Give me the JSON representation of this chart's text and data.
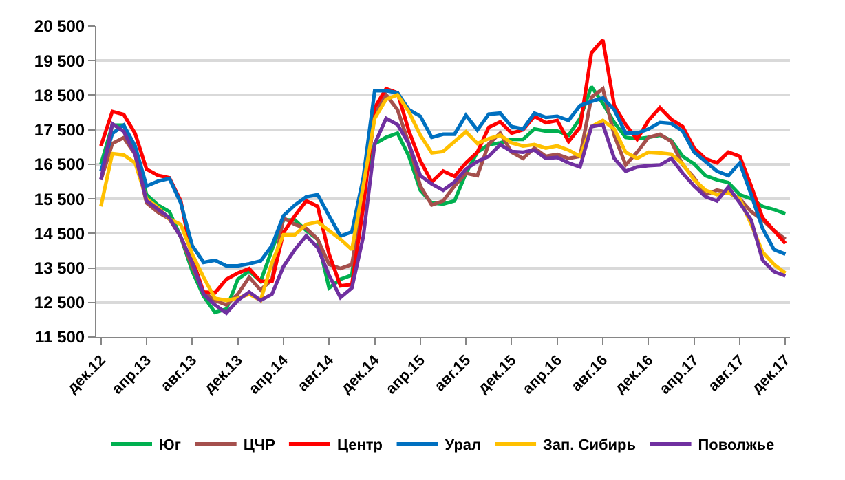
{
  "chart_data": {
    "type": "line",
    "categories": [
      "дек.12",
      null,
      null,
      null,
      "апр.13",
      null,
      null,
      null,
      "авг.13",
      null,
      null,
      null,
      "дек.13",
      null,
      null,
      null,
      "апр.14",
      null,
      null,
      null,
      "авг.14",
      null,
      null,
      null,
      "дек.14",
      null,
      null,
      null,
      "апр.15",
      null,
      null,
      null,
      "авг.15",
      null,
      null,
      null,
      "дек.15",
      null,
      null,
      null,
      "апр.16",
      null,
      null,
      null,
      "авг.16",
      null,
      null,
      null,
      "дек.16",
      null,
      null,
      null,
      "апр.17",
      null,
      null,
      null,
      "авг.17",
      null,
      null,
      null,
      "дек.17"
    ],
    "ylim": [
      11500,
      20500
    ],
    "yticks": [
      {
        "value": 11500,
        "label": "11 500"
      },
      {
        "value": 12500,
        "label": "12 500"
      },
      {
        "value": 13500,
        "label": "13 500"
      },
      {
        "value": 14500,
        "label": "14 500"
      },
      {
        "value": 15500,
        "label": "15 500"
      },
      {
        "value": 16500,
        "label": "16 500"
      },
      {
        "value": 17500,
        "label": "17 500"
      },
      {
        "value": 18500,
        "label": "18 500"
      },
      {
        "value": 19500,
        "label": "19 500"
      },
      {
        "value": 20500,
        "label": "20 500"
      }
    ],
    "grid": "y",
    "legend": "bottom",
    "marker": "none",
    "line_style": "solid",
    "series": [
      {
        "name": "Юг",
        "color": "#00b050",
        "values": [
          16500,
          17630,
          17630,
          16900,
          15620,
          15320,
          15130,
          14400,
          13410,
          12680,
          12210,
          12310,
          13170,
          13410,
          13110,
          14030,
          14890,
          14890,
          14580,
          14330,
          12920,
          13170,
          13290,
          15870,
          17090,
          17280,
          17400,
          16730,
          15750,
          15380,
          15350,
          15440,
          16240,
          16850,
          17070,
          17120,
          17220,
          17220,
          17520,
          17460,
          17460,
          17340,
          17830,
          18750,
          18260,
          17710,
          17280,
          17240,
          17280,
          17340,
          17190,
          16730,
          16510,
          16170,
          16050,
          15970,
          15620,
          15500,
          15280,
          15190,
          15070
        ]
      },
      {
        "name": "ЦЧР",
        "color": "#a5504d",
        "values": [
          16050,
          17100,
          17270,
          16790,
          15380,
          15110,
          14920,
          14400,
          13540,
          12800,
          12560,
          12430,
          12740,
          13230,
          12860,
          13170,
          14950,
          14760,
          14640,
          14330,
          13600,
          13480,
          13600,
          15500,
          17950,
          18510,
          18080,
          17090,
          15870,
          15320,
          15440,
          15870,
          16240,
          16170,
          17090,
          17400,
          16850,
          16670,
          16970,
          16730,
          16790,
          16670,
          16730,
          18440,
          18690,
          17340,
          16480,
          16850,
          17280,
          17370,
          17160,
          16480,
          16110,
          15620,
          15750,
          15680,
          15500,
          15130,
          14890,
          14580,
          14330
        ]
      },
      {
        "name": "Центр",
        "color": "#ff0000",
        "values": [
          17030,
          18030,
          17940,
          17390,
          16360,
          16180,
          16110,
          15440,
          13780,
          12800,
          12780,
          13170,
          13350,
          13480,
          13110,
          13110,
          14520,
          15010,
          15440,
          15280,
          13900,
          12980,
          13020,
          15250,
          18140,
          18690,
          18570,
          17460,
          16600,
          15990,
          16300,
          16150,
          16540,
          16850,
          17570,
          17730,
          17400,
          17500,
          17890,
          17700,
          17770,
          17160,
          17570,
          19730,
          20100,
          18200,
          17650,
          17220,
          17770,
          18140,
          17800,
          17590,
          16970,
          16660,
          16540,
          16850,
          16730,
          15870,
          14950,
          14580,
          14210
        ]
      },
      {
        "name": "Урал",
        "color": "#0070c0",
        "values": [
          16300,
          17390,
          17630,
          17030,
          15870,
          16010,
          16090,
          15380,
          14150,
          13660,
          13720,
          13560,
          13560,
          13620,
          13700,
          14150,
          15010,
          15320,
          15560,
          15620,
          15010,
          14420,
          14540,
          16110,
          18630,
          18630,
          18570,
          18080,
          17890,
          17280,
          17370,
          17370,
          17920,
          17490,
          17950,
          17980,
          17590,
          17520,
          17980,
          17860,
          17890,
          17770,
          18200,
          18320,
          18420,
          18080,
          17400,
          17400,
          17520,
          17710,
          17680,
          17460,
          16850,
          16580,
          16300,
          16170,
          16540,
          15620,
          14640,
          14030,
          13900
        ]
      },
      {
        "name": "Зап. Сибирь",
        "color": "#ffc000",
        "values": [
          15280,
          16810,
          16770,
          16540,
          15500,
          15250,
          14920,
          14760,
          13900,
          13230,
          12620,
          12560,
          12620,
          12740,
          12560,
          13660,
          14460,
          14460,
          14760,
          14830,
          14580,
          14330,
          14030,
          15870,
          17830,
          18380,
          18510,
          18020,
          17340,
          16830,
          16870,
          17160,
          17440,
          17100,
          17240,
          17340,
          17120,
          17030,
          17070,
          16970,
          17030,
          16910,
          16730,
          17590,
          17770,
          17520,
          16850,
          16670,
          16850,
          16830,
          16790,
          16510,
          16050,
          15750,
          15620,
          15680,
          15500,
          14760,
          13960,
          13600,
          13350
        ]
      },
      {
        "name": "Поволжье",
        "color": "#7030a0",
        "values": [
          16050,
          17670,
          17450,
          16790,
          15440,
          15200,
          14950,
          14400,
          13660,
          12740,
          12430,
          12190,
          12560,
          12800,
          12560,
          12740,
          13540,
          14030,
          14430,
          14090,
          13290,
          12640,
          12920,
          14400,
          17090,
          17830,
          17650,
          17090,
          16170,
          15930,
          15750,
          15990,
          16360,
          16580,
          16730,
          17070,
          16870,
          16850,
          16910,
          16670,
          16700,
          16540,
          16420,
          17590,
          17650,
          16670,
          16300,
          16420,
          16460,
          16480,
          16670,
          16240,
          15870,
          15560,
          15440,
          15840,
          15380,
          14890,
          13720,
          13390,
          13270
        ]
      }
    ]
  }
}
